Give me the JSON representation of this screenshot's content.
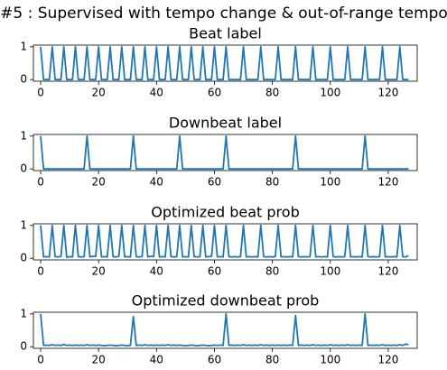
{
  "title": "#5 : Supervised with tempo change & out-of-range tempo",
  "chart_data": [
    {
      "type": "line",
      "title": "Beat label",
      "color": "#1f77b4",
      "x": [
        0,
        1,
        2,
        3,
        4,
        5,
        6,
        7,
        8,
        9,
        10,
        11,
        12,
        13,
        14,
        15,
        16,
        17,
        18,
        19,
        20,
        21,
        22,
        23,
        24,
        25,
        26,
        27,
        28,
        29,
        30,
        31,
        32,
        33,
        34,
        35,
        36,
        37,
        38,
        39,
        40,
        41,
        42,
        43,
        44,
        45,
        46,
        47,
        48,
        49,
        50,
        51,
        52,
        53,
        54,
        55,
        56,
        57,
        58,
        59,
        60,
        61,
        62,
        63,
        64,
        65,
        66,
        67,
        68,
        69,
        70,
        71,
        72,
        73,
        74,
        75,
        76,
        77,
        78,
        79,
        80,
        81,
        82,
        83,
        84,
        85,
        86,
        87,
        88,
        89,
        90,
        91,
        92,
        93,
        94,
        95,
        96,
        97,
        98,
        99,
        100,
        101,
        102,
        103,
        104,
        105,
        106,
        107,
        108,
        109,
        110,
        111,
        112,
        113,
        114,
        115,
        116,
        117,
        118,
        119,
        120,
        121,
        122,
        123,
        124,
        125,
        126,
        127
      ],
      "values": [
        1,
        0,
        0,
        0,
        1,
        0,
        0,
        0,
        1,
        0,
        0,
        0,
        1,
        0,
        0,
        0,
        1,
        0,
        0,
        0,
        1,
        0,
        0,
        0,
        1,
        0,
        0,
        0,
        1,
        0,
        0,
        0,
        1,
        0,
        0,
        0,
        1,
        0,
        0,
        0,
        1,
        0,
        0,
        0,
        1,
        0,
        0,
        0,
        1,
        0,
        0,
        0,
        1,
        0,
        0,
        0,
        1,
        0,
        0,
        0,
        1,
        0,
        0,
        0,
        1,
        0,
        0,
        0,
        0,
        0,
        1,
        0,
        0,
        0,
        0,
        0,
        1,
        0,
        0,
        0,
        0,
        0,
        1,
        0,
        0,
        0,
        0,
        0,
        1,
        0,
        0,
        0,
        0,
        0,
        1,
        0,
        0,
        0,
        0,
        0,
        1,
        0,
        0,
        0,
        0,
        0,
        1,
        0,
        0,
        0,
        0,
        0,
        1,
        0,
        0,
        0,
        0,
        0,
        1,
        0,
        0,
        0,
        0,
        0,
        1,
        0,
        0,
        0
      ],
      "xlim": [
        -2.5,
        130
      ],
      "ylim": [
        -0.05,
        1.05
      ],
      "xticks": [
        0,
        20,
        40,
        60,
        80,
        100,
        120
      ],
      "yticks": [
        0,
        1
      ]
    },
    {
      "type": "line",
      "title": "Downbeat label",
      "color": "#1f77b4",
      "x": [
        0,
        1,
        2,
        3,
        4,
        5,
        6,
        7,
        8,
        9,
        10,
        11,
        12,
        13,
        14,
        15,
        16,
        17,
        18,
        19,
        20,
        21,
        22,
        23,
        24,
        25,
        26,
        27,
        28,
        29,
        30,
        31,
        32,
        33,
        34,
        35,
        36,
        37,
        38,
        39,
        40,
        41,
        42,
        43,
        44,
        45,
        46,
        47,
        48,
        49,
        50,
        51,
        52,
        53,
        54,
        55,
        56,
        57,
        58,
        59,
        60,
        61,
        62,
        63,
        64,
        65,
        66,
        67,
        68,
        69,
        70,
        71,
        72,
        73,
        74,
        75,
        76,
        77,
        78,
        79,
        80,
        81,
        82,
        83,
        84,
        85,
        86,
        87,
        88,
        89,
        90,
        91,
        92,
        93,
        94,
        95,
        96,
        97,
        98,
        99,
        100,
        101,
        102,
        103,
        104,
        105,
        106,
        107,
        108,
        109,
        110,
        111,
        112,
        113,
        114,
        115,
        116,
        117,
        118,
        119,
        120,
        121,
        122,
        123,
        124,
        125,
        126,
        127
      ],
      "values": [
        1,
        0,
        0,
        0,
        0,
        0,
        0,
        0,
        0,
        0,
        0,
        0,
        0,
        0,
        0,
        0,
        1,
        0,
        0,
        0,
        0,
        0,
        0,
        0,
        0,
        0,
        0,
        0,
        0,
        0,
        0,
        0,
        1,
        0,
        0,
        0,
        0,
        0,
        0,
        0,
        0,
        0,
        0,
        0,
        0,
        0,
        0,
        0,
        1,
        0,
        0,
        0,
        0,
        0,
        0,
        0,
        0,
        0,
        0,
        0,
        0,
        0,
        0,
        0,
        1,
        0,
        0,
        0,
        0,
        0,
        0,
        0,
        0,
        0,
        0,
        0,
        0,
        0,
        0,
        0,
        0,
        0,
        0,
        0,
        0,
        0,
        0,
        0,
        1,
        0,
        0,
        0,
        0,
        0,
        0,
        0,
        0,
        0,
        0,
        0,
        0,
        0,
        0,
        0,
        0,
        0,
        0,
        0,
        0,
        0,
        0,
        0,
        1,
        0,
        0,
        0,
        0,
        0,
        0,
        0,
        0,
        0,
        0,
        0,
        0,
        0,
        0,
        0
      ],
      "xlim": [
        -2.5,
        130
      ],
      "ylim": [
        -0.05,
        1.05
      ],
      "xticks": [
        0,
        20,
        40,
        60,
        80,
        100,
        120
      ],
      "yticks": [
        0,
        1
      ]
    },
    {
      "type": "line",
      "title": "Optimized beat prob",
      "color": "#1f77b4",
      "x": [
        0,
        1,
        2,
        3,
        4,
        5,
        6,
        7,
        8,
        9,
        10,
        11,
        12,
        13,
        14,
        15,
        16,
        17,
        18,
        19,
        20,
        21,
        22,
        23,
        24,
        25,
        26,
        27,
        28,
        29,
        30,
        31,
        32,
        33,
        34,
        35,
        36,
        37,
        38,
        39,
        40,
        41,
        42,
        43,
        44,
        45,
        46,
        47,
        48,
        49,
        50,
        51,
        52,
        53,
        54,
        55,
        56,
        57,
        58,
        59,
        60,
        61,
        62,
        63,
        64,
        65,
        66,
        67,
        68,
        69,
        70,
        71,
        72,
        73,
        74,
        75,
        76,
        77,
        78,
        79,
        80,
        81,
        82,
        83,
        84,
        85,
        86,
        87,
        88,
        89,
        90,
        91,
        92,
        93,
        94,
        95,
        96,
        97,
        98,
        99,
        100,
        101,
        102,
        103,
        104,
        105,
        106,
        107,
        108,
        109,
        110,
        111,
        112,
        113,
        114,
        115,
        116,
        117,
        118,
        119,
        120,
        121,
        122,
        123,
        124,
        125,
        126,
        127
      ],
      "values": [
        1,
        0.04,
        0.05,
        0.04,
        1,
        0.05,
        0.04,
        0.06,
        1,
        0.03,
        0.05,
        0.04,
        1,
        0.05,
        0.04,
        0.05,
        1,
        0.04,
        0.06,
        0.05,
        1,
        0.04,
        0.05,
        0.04,
        1,
        0.05,
        0.04,
        0.06,
        1,
        0.04,
        0.05,
        0.04,
        1,
        0.05,
        0.04,
        0.05,
        1,
        0.04,
        0.06,
        0.05,
        1,
        0.04,
        0.05,
        0.04,
        1,
        0.05,
        0.04,
        0.05,
        1,
        0.04,
        0.05,
        0.04,
        1,
        0.05,
        0.04,
        0.05,
        1,
        0.04,
        0.05,
        0.06,
        1,
        0.04,
        0.05,
        0.04,
        1,
        0.05,
        0.04,
        0.05,
        0.04,
        0.05,
        1,
        0.04,
        0.05,
        0.04,
        0.05,
        0.04,
        1,
        0.05,
        0.04,
        0.05,
        0.04,
        0.05,
        1,
        0.04,
        0.05,
        0.04,
        0.05,
        0.04,
        1,
        0.05,
        0.04,
        0.05,
        0.04,
        0.05,
        1,
        0.04,
        0.05,
        0.04,
        0.05,
        0.04,
        1,
        0.05,
        0.04,
        0.05,
        0.04,
        0.05,
        1,
        0.04,
        0.05,
        0.04,
        0.05,
        0.04,
        1,
        0.05,
        0.04,
        0.05,
        0.04,
        0.05,
        1,
        0.04,
        0.05,
        0.04,
        0.05,
        0.04,
        1,
        0.05,
        0.04,
        0.08
      ],
      "xlim": [
        -2.5,
        130
      ],
      "ylim": [
        -0.05,
        1.05
      ],
      "xticks": [
        0,
        20,
        40,
        60,
        80,
        100,
        120
      ],
      "yticks": [
        0,
        1
      ]
    },
    {
      "type": "line",
      "title": "Optimized downbeat prob",
      "color": "#1f77b4",
      "x": [
        0,
        1,
        2,
        3,
        4,
        5,
        6,
        7,
        8,
        9,
        10,
        11,
        12,
        13,
        14,
        15,
        16,
        17,
        18,
        19,
        20,
        21,
        22,
        23,
        24,
        25,
        26,
        27,
        28,
        29,
        30,
        31,
        32,
        33,
        34,
        35,
        36,
        37,
        38,
        39,
        40,
        41,
        42,
        43,
        44,
        45,
        46,
        47,
        48,
        49,
        50,
        51,
        52,
        53,
        54,
        55,
        56,
        57,
        58,
        59,
        60,
        61,
        62,
        63,
        64,
        65,
        66,
        67,
        68,
        69,
        70,
        71,
        72,
        73,
        74,
        75,
        76,
        77,
        78,
        79,
        80,
        81,
        82,
        83,
        84,
        85,
        86,
        87,
        88,
        89,
        90,
        91,
        92,
        93,
        94,
        95,
        96,
        97,
        98,
        99,
        100,
        101,
        102,
        103,
        104,
        105,
        106,
        107,
        108,
        109,
        110,
        111,
        112,
        113,
        114,
        115,
        116,
        117,
        118,
        119,
        120,
        121,
        122,
        123,
        124,
        125,
        126,
        127
      ],
      "values": [
        1,
        0.04,
        0.05,
        0.04,
        0.06,
        0.04,
        0.05,
        0.04,
        0.07,
        0.04,
        0.05,
        0.04,
        0.05,
        0.04,
        0.05,
        0.04,
        0.06,
        0.04,
        0.05,
        0.04,
        0.05,
        0.04,
        0.03,
        0.04,
        0.05,
        0.04,
        0.03,
        0.04,
        0.05,
        0.04,
        0.03,
        0.04,
        0.92,
        0.04,
        0.05,
        0.04,
        0.06,
        0.04,
        0.05,
        0.04,
        0.05,
        0.04,
        0.05,
        0.04,
        0.06,
        0.04,
        0.05,
        0.04,
        0.05,
        0.04,
        0.03,
        0.04,
        0.05,
        0.04,
        0.03,
        0.04,
        0.05,
        0.04,
        0.03,
        0.04,
        0.05,
        0.04,
        0.05,
        0.04,
        1,
        0.04,
        0.05,
        0.04,
        0.05,
        0.04,
        0.06,
        0.04,
        0.05,
        0.04,
        0.05,
        0.04,
        0.06,
        0.04,
        0.05,
        0.04,
        0.05,
        0.04,
        0.05,
        0.04,
        0.05,
        0.04,
        0.05,
        0.04,
        0.95,
        0.04,
        0.05,
        0.04,
        0.05,
        0.04,
        0.06,
        0.04,
        0.05,
        0.04,
        0.05,
        0.04,
        0.06,
        0.04,
        0.05,
        0.04,
        0.05,
        0.04,
        0.06,
        0.04,
        0.05,
        0.04,
        0.05,
        0.04,
        1,
        0.04,
        0.05,
        0.04,
        0.05,
        0.04,
        0.06,
        0.04,
        0.05,
        0.04,
        0.05,
        0.04,
        0.06,
        0.04,
        0.08,
        0.06
      ],
      "xlim": [
        -2.5,
        130
      ],
      "ylim": [
        -0.05,
        1.05
      ],
      "xticks": [
        0,
        20,
        40,
        60,
        80,
        100,
        120
      ],
      "yticks": [
        0,
        1
      ]
    }
  ]
}
